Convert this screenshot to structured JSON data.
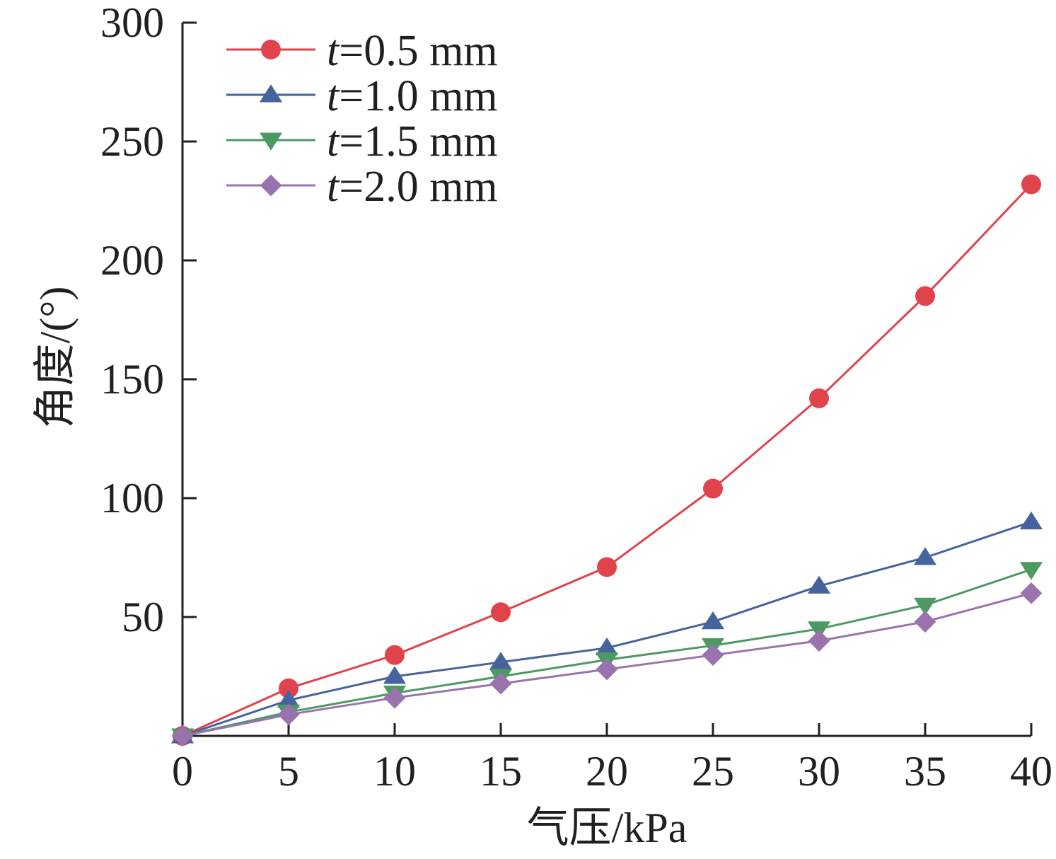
{
  "chart_data": {
    "type": "line",
    "title": "",
    "xlabel": "气压/kPa",
    "ylabel": "角度/(°)",
    "xlim": [
      0,
      40
    ],
    "ylim": [
      0,
      300
    ],
    "xticks": [
      "0",
      "5",
      "10",
      "15",
      "20",
      "25",
      "30",
      "35",
      "40"
    ],
    "yticks": [
      "50",
      "100",
      "150",
      "200",
      "250",
      "300"
    ],
    "legend_position": "top-left",
    "grid": false,
    "x": [
      0,
      5,
      10,
      15,
      20,
      25,
      30,
      35,
      40
    ],
    "series": [
      {
        "name": "t=0.5 mm",
        "var": "t",
        "rest": "=0.5 mm",
        "color": "#e0434b",
        "marker": "circle",
        "values": [
          0,
          20,
          34,
          52,
          71,
          104,
          142,
          185,
          232
        ]
      },
      {
        "name": "t=1.0 mm",
        "var": "t",
        "rest": "=1.0 mm",
        "color": "#46639e",
        "marker": "triangle-up",
        "values": [
          0,
          15,
          25,
          31,
          37,
          48,
          63,
          75,
          90
        ]
      },
      {
        "name": "t=1.5 mm",
        "var": "t",
        "rest": "=1.5 mm",
        "color": "#4c9a62",
        "marker": "triangle-down",
        "values": [
          0,
          10,
          18,
          25,
          32,
          38,
          45,
          55,
          70
        ]
      },
      {
        "name": "t=2.0 mm",
        "var": "t",
        "rest": "=2.0 mm",
        "color": "#9a72ae",
        "marker": "diamond",
        "values": [
          0,
          9,
          16,
          22,
          28,
          34,
          40,
          48,
          60
        ]
      }
    ]
  }
}
